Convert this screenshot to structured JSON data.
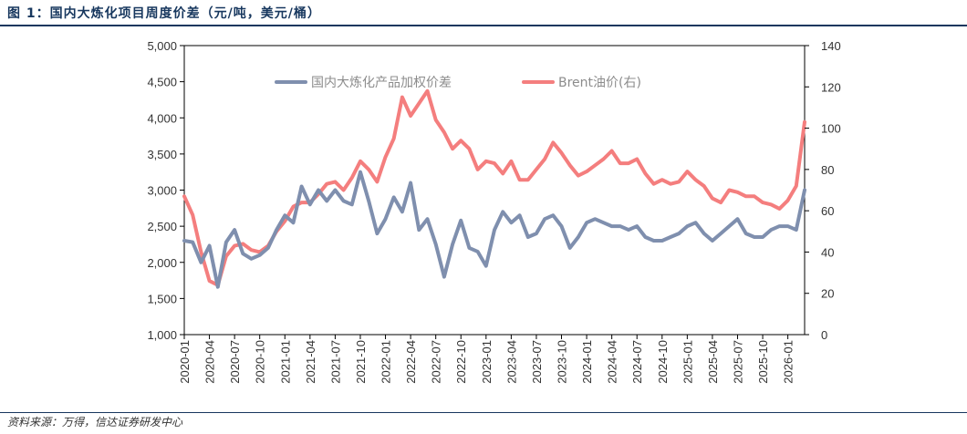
{
  "figure": {
    "title": "图 1：国内大炼化项目周度价差（元/吨，美元/桶）",
    "source": "资料来源：万得，信达证券研发中心"
  },
  "colors": {
    "price_spread": "#7f8fae",
    "brent": "#f47e7e",
    "title": "#17375e"
  },
  "chart_data": {
    "type": "line",
    "title": "",
    "xlabel": "",
    "ylabel": "",
    "ylim": [
      1000,
      5000
    ],
    "y2lim": [
      0,
      140
    ],
    "legend": "top",
    "grid": false,
    "y_ticks": [
      "5,000",
      "4,500",
      "4,000",
      "3,500",
      "3,000",
      "2,500",
      "2,000",
      "1,500",
      "1,000"
    ],
    "y2_ticks": [
      "140",
      "120",
      "100",
      "80",
      "60",
      "40",
      "20",
      "0"
    ],
    "x_ticks": [
      "2020-01",
      "2020-04",
      "2020-07",
      "2020-10",
      "2021-01",
      "2021-04",
      "2021-07",
      "2021-10",
      "2022-01",
      "2022-04",
      "2022-07",
      "2022-10",
      "2023-01",
      "2023-04",
      "2023-07",
      "2023-10",
      "2024-01",
      "2024-04",
      "2024-07",
      "2024-10",
      "2025-01",
      "2025-04",
      "2025-07",
      "2025-10",
      "2026-01"
    ],
    "series": [
      {
        "name": "国内大炼化产品加权价差",
        "axis": "left",
        "points": [
          [
            "2020-01",
            2300
          ],
          [
            "2020-02",
            2280
          ],
          [
            "2020-03",
            2000
          ],
          [
            "2020-04",
            2230
          ],
          [
            "2020-05",
            1660
          ],
          [
            "2020-06",
            2280
          ],
          [
            "2020-07",
            2450
          ],
          [
            "2020-08",
            2120
          ],
          [
            "2020-09",
            2050
          ],
          [
            "2020-10",
            2100
          ],
          [
            "2020-11",
            2200
          ],
          [
            "2020-12",
            2450
          ],
          [
            "2021-01",
            2650
          ],
          [
            "2021-02",
            2550
          ],
          [
            "2021-03",
            3050
          ],
          [
            "2021-04",
            2800
          ],
          [
            "2021-05",
            3000
          ],
          [
            "2021-06",
            2850
          ],
          [
            "2021-07",
            3000
          ],
          [
            "2021-08",
            2850
          ],
          [
            "2021-09",
            2800
          ],
          [
            "2021-10",
            3250
          ],
          [
            "2021-11",
            2850
          ],
          [
            "2021-12",
            2400
          ],
          [
            "2022-01",
            2600
          ],
          [
            "2022-02",
            2900
          ],
          [
            "2022-03",
            2700
          ],
          [
            "2022-04",
            3100
          ],
          [
            "2022-05",
            2450
          ],
          [
            "2022-06",
            2600
          ],
          [
            "2022-07",
            2250
          ],
          [
            "2022-08",
            1800
          ],
          [
            "2022-09",
            2250
          ],
          [
            "2022-10",
            2580
          ],
          [
            "2022-11",
            2200
          ],
          [
            "2022-12",
            2150
          ],
          [
            "2023-01",
            1950
          ],
          [
            "2023-02",
            2450
          ],
          [
            "2023-03",
            2700
          ],
          [
            "2023-04",
            2550
          ],
          [
            "2023-05",
            2650
          ],
          [
            "2023-06",
            2350
          ],
          [
            "2023-07",
            2400
          ],
          [
            "2023-08",
            2600
          ],
          [
            "2023-09",
            2650
          ],
          [
            "2023-10",
            2500
          ],
          [
            "2023-11",
            2200
          ],
          [
            "2023-12",
            2350
          ],
          [
            "2024-01",
            2550
          ],
          [
            "2024-02",
            2600
          ],
          [
            "2024-03",
            2550
          ],
          [
            "2024-04",
            2500
          ],
          [
            "2024-05",
            2500
          ],
          [
            "2024-06",
            2450
          ],
          [
            "2024-07",
            2500
          ],
          [
            "2024-08",
            2350
          ],
          [
            "2024-09",
            2300
          ],
          [
            "2024-10",
            2300
          ],
          [
            "2024-11",
            2350
          ],
          [
            "2024-12",
            2400
          ],
          [
            "2025-01",
            2500
          ],
          [
            "2025-02",
            2550
          ],
          [
            "2025-03",
            2400
          ],
          [
            "2025-04",
            2300
          ],
          [
            "2025-05",
            2400
          ],
          [
            "2025-06",
            2500
          ],
          [
            "2025-07",
            2600
          ],
          [
            "2025-08",
            2400
          ],
          [
            "2025-09",
            2350
          ],
          [
            "2025-10",
            2350
          ],
          [
            "2025-11",
            2450
          ],
          [
            "2025-12",
            2500
          ],
          [
            "2026-01",
            2500
          ],
          [
            "2026-02",
            2450
          ],
          [
            "2026-03",
            3000
          ]
        ]
      },
      {
        "name": "Brent油价(右)",
        "axis": "right",
        "points": [
          [
            "2020-01",
            67
          ],
          [
            "2020-02",
            58
          ],
          [
            "2020-03",
            40
          ],
          [
            "2020-04",
            26
          ],
          [
            "2020-05",
            24
          ],
          [
            "2020-06",
            38
          ],
          [
            "2020-07",
            43
          ],
          [
            "2020-08",
            44
          ],
          [
            "2020-09",
            41
          ],
          [
            "2020-10",
            40
          ],
          [
            "2020-11",
            43
          ],
          [
            "2020-12",
            50
          ],
          [
            "2021-01",
            55
          ],
          [
            "2021-02",
            62
          ],
          [
            "2021-03",
            64
          ],
          [
            "2021-04",
            64
          ],
          [
            "2021-05",
            68
          ],
          [
            "2021-06",
            73
          ],
          [
            "2021-07",
            74
          ],
          [
            "2021-08",
            70
          ],
          [
            "2021-09",
            76
          ],
          [
            "2021-10",
            84
          ],
          [
            "2021-11",
            80
          ],
          [
            "2021-12",
            74
          ],
          [
            "2022-01",
            86
          ],
          [
            "2022-02",
            95
          ],
          [
            "2022-03",
            115
          ],
          [
            "2022-04",
            106
          ],
          [
            "2022-05",
            112
          ],
          [
            "2022-06",
            118
          ],
          [
            "2022-07",
            104
          ],
          [
            "2022-08",
            98
          ],
          [
            "2022-09",
            90
          ],
          [
            "2022-10",
            94
          ],
          [
            "2022-11",
            90
          ],
          [
            "2022-12",
            80
          ],
          [
            "2023-01",
            84
          ],
          [
            "2023-02",
            83
          ],
          [
            "2023-03",
            78
          ],
          [
            "2023-04",
            84
          ],
          [
            "2023-05",
            75
          ],
          [
            "2023-06",
            75
          ],
          [
            "2023-07",
            80
          ],
          [
            "2023-08",
            85
          ],
          [
            "2023-09",
            93
          ],
          [
            "2023-10",
            88
          ],
          [
            "2023-11",
            82
          ],
          [
            "2023-12",
            77
          ],
          [
            "2024-01",
            79
          ],
          [
            "2024-02",
            82
          ],
          [
            "2024-03",
            85
          ],
          [
            "2024-04",
            89
          ],
          [
            "2024-05",
            83
          ],
          [
            "2024-06",
            83
          ],
          [
            "2024-07",
            85
          ],
          [
            "2024-08",
            78
          ],
          [
            "2024-09",
            73
          ],
          [
            "2024-10",
            75
          ],
          [
            "2024-11",
            73
          ],
          [
            "2024-12",
            74
          ],
          [
            "2025-01",
            79
          ],
          [
            "2025-02",
            75
          ],
          [
            "2025-03",
            72
          ],
          [
            "2025-04",
            66
          ],
          [
            "2025-05",
            64
          ],
          [
            "2025-06",
            70
          ],
          [
            "2025-07",
            69
          ],
          [
            "2025-08",
            67
          ],
          [
            "2025-09",
            67
          ],
          [
            "2025-10",
            64
          ],
          [
            "2025-11",
            63
          ],
          [
            "2025-12",
            61
          ],
          [
            "2026-01",
            65
          ],
          [
            "2026-02",
            72
          ],
          [
            "2026-03",
            103
          ]
        ]
      }
    ]
  }
}
